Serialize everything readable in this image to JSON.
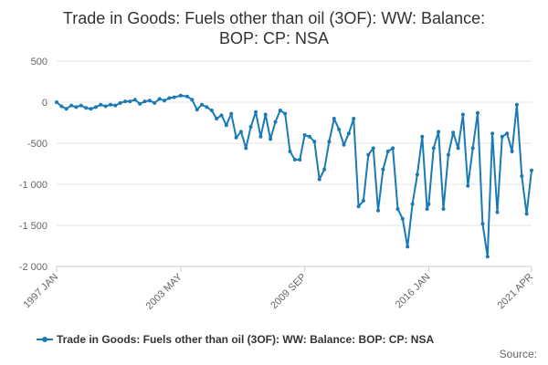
{
  "chart_data": {
    "type": "line",
    "title_lines": [
      "Trade in Goods: Fuels other than oil (3OF): WW: Balance:",
      "BOP: CP: NSA"
    ],
    "x_tick_labels": [
      "1997 JAN",
      "2003 MAY",
      "2009 SEP",
      "2016 JAN",
      "2021 APR"
    ],
    "x_range": [
      "1997 JAN",
      "2021 APR"
    ],
    "y_ticks": [
      500,
      0,
      -500,
      -1000,
      -1500,
      -2000
    ],
    "y_tick_labels": [
      "500",
      "0",
      "-500",
      "-1 000",
      "-1 500",
      "-2 000"
    ],
    "ylim": [
      -2000,
      500
    ],
    "grid": "horizontal",
    "legend_position": "bottom",
    "source_label": "Source:",
    "series": [
      {
        "name": "Trade in Goods: Fuels other than oil (3OF): WW: Balance: BOP: CP: NSA",
        "color": "#1a7ab5",
        "points": [
          [
            "1997 JAN",
            0
          ],
          [
            "1997 APR",
            -50
          ],
          [
            "1997 JUL",
            -80
          ],
          [
            "1997 OCT",
            -40
          ],
          [
            "1998 JAN",
            -60
          ],
          [
            "1998 APR",
            -40
          ],
          [
            "1998 JUL",
            -70
          ],
          [
            "1998 OCT",
            -80
          ],
          [
            "1999 JAN",
            -60
          ],
          [
            "1999 APR",
            -30
          ],
          [
            "1999 JUL",
            -50
          ],
          [
            "1999 OCT",
            -30
          ],
          [
            "2000 JAN",
            -40
          ],
          [
            "2000 APR",
            -10
          ],
          [
            "2000 JUL",
            10
          ],
          [
            "2000 OCT",
            10
          ],
          [
            "2001 JAN",
            30
          ],
          [
            "2001 APR",
            -20
          ],
          [
            "2001 JUL",
            10
          ],
          [
            "2001 OCT",
            20
          ],
          [
            "2002 JAN",
            -10
          ],
          [
            "2002 APR",
            40
          ],
          [
            "2002 JUL",
            20
          ],
          [
            "2002 OCT",
            50
          ],
          [
            "2003 JAN",
            60
          ],
          [
            "2003 MAY",
            80
          ],
          [
            "2003 SEP",
            70
          ],
          [
            "2003 DEC",
            30
          ],
          [
            "2004 MAR",
            -90
          ],
          [
            "2004 JUN",
            -30
          ],
          [
            "2004 SEP",
            -60
          ],
          [
            "2004 DEC",
            -100
          ],
          [
            "2005 MAR",
            -200
          ],
          [
            "2005 JUN",
            -160
          ],
          [
            "2005 SEP",
            -280
          ],
          [
            "2005 DEC",
            -140
          ],
          [
            "2006 MAR",
            -430
          ],
          [
            "2006 JUN",
            -360
          ],
          [
            "2006 SEP",
            -560
          ],
          [
            "2006 DEC",
            -300
          ],
          [
            "2007 MAR",
            -120
          ],
          [
            "2007 JUN",
            -420
          ],
          [
            "2007 SEP",
            -150
          ],
          [
            "2007 DEC",
            -450
          ],
          [
            "2008 MAR",
            -240
          ],
          [
            "2008 JUN",
            -100
          ],
          [
            "2008 SEP",
            -140
          ],
          [
            "2008 DEC",
            -600
          ],
          [
            "2009 MAR",
            -700
          ],
          [
            "2009 JUN",
            -700
          ],
          [
            "2009 SEP",
            -400
          ],
          [
            "2009 DEC",
            -420
          ],
          [
            "2010 MAR",
            -480
          ],
          [
            "2010 JUN",
            -940
          ],
          [
            "2010 SEP",
            -820
          ],
          [
            "2010 DEC",
            -480
          ],
          [
            "2011 MAR",
            -200
          ],
          [
            "2011 JUN",
            -330
          ],
          [
            "2011 SEP",
            -520
          ],
          [
            "2011 DEC",
            -380
          ],
          [
            "2012 MAR",
            -200
          ],
          [
            "2012 JUN",
            -1270
          ],
          [
            "2012 SEP",
            -1200
          ],
          [
            "2012 DEC",
            -640
          ],
          [
            "2013 MAR",
            -560
          ],
          [
            "2013 JUN",
            -1320
          ],
          [
            "2013 SEP",
            -820
          ],
          [
            "2013 DEC",
            -600
          ],
          [
            "2014 MAR",
            -560
          ],
          [
            "2014 JUN",
            -1300
          ],
          [
            "2014 SEP",
            -1420
          ],
          [
            "2014 DEC",
            -1760
          ],
          [
            "2015 MAR",
            -1240
          ],
          [
            "2015 JUN",
            -880
          ],
          [
            "2015 SEP",
            -420
          ],
          [
            "2015 DEC",
            -1300
          ],
          [
            "2016 JAN",
            -1240
          ],
          [
            "2016 APR",
            -560
          ],
          [
            "2016 JUL",
            -360
          ],
          [
            "2016 OCT",
            -1300
          ],
          [
            "2017 JAN",
            -640
          ],
          [
            "2017 APR",
            -370
          ],
          [
            "2017 JUL",
            -560
          ],
          [
            "2017 OCT",
            -150
          ],
          [
            "2018 JAN",
            -1020
          ],
          [
            "2018 APR",
            -560
          ],
          [
            "2018 JUL",
            -130
          ],
          [
            "2018 OCT",
            -1480
          ],
          [
            "2019 JAN",
            -1880
          ],
          [
            "2019 APR",
            -380
          ],
          [
            "2019 JUL",
            -1340
          ],
          [
            "2019 OCT",
            -420
          ],
          [
            "2020 JAN",
            -380
          ],
          [
            "2020 APR",
            -600
          ],
          [
            "2020 JUL",
            -30
          ],
          [
            "2020 OCT",
            -900
          ],
          [
            "2021 JAN",
            -1360
          ],
          [
            "2021 APR",
            -830
          ]
        ]
      }
    ]
  }
}
